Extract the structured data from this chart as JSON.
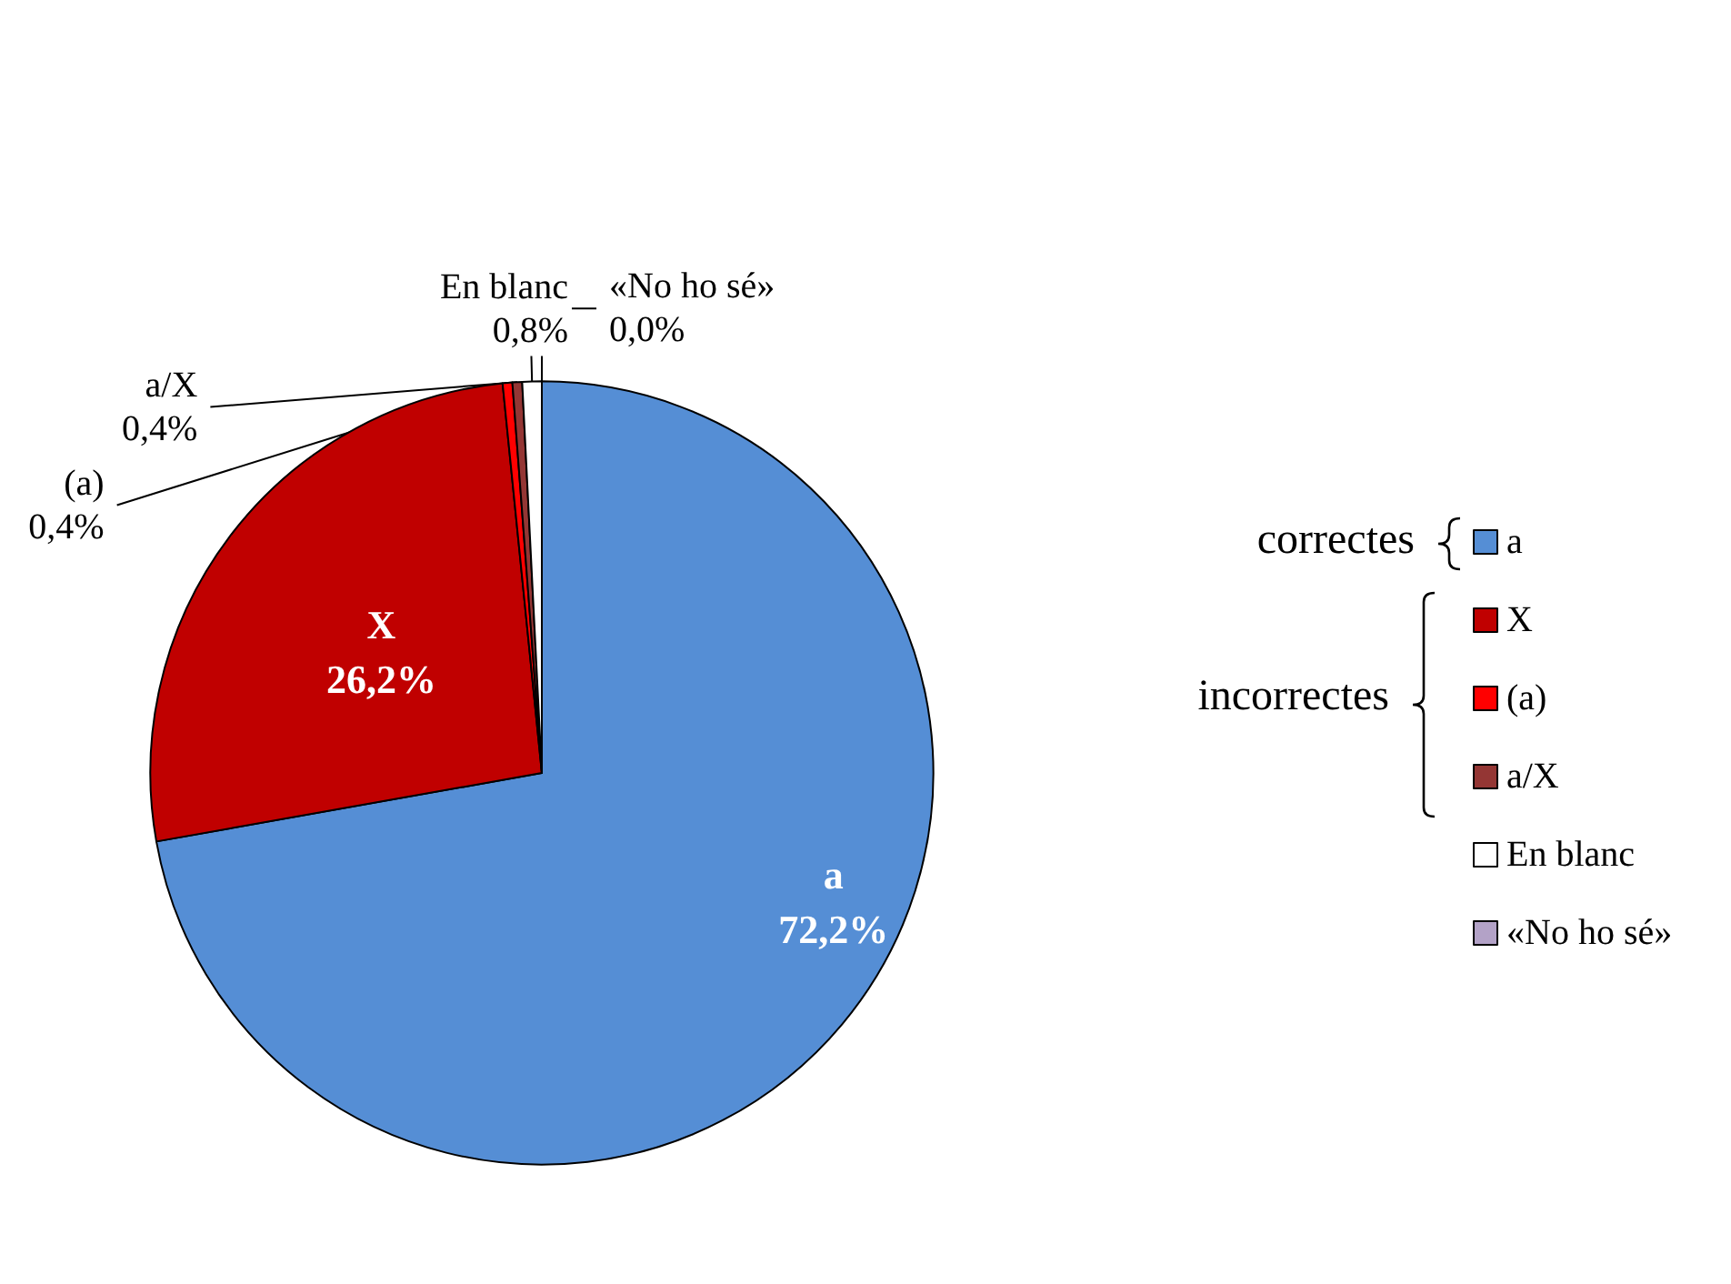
{
  "chart_data": {
    "type": "pie",
    "categories": [
      "a",
      "X",
      "(a)",
      "a/X",
      "En blanc",
      "«No ho sé»"
    ],
    "values": [
      72.2,
      26.2,
      0.4,
      0.4,
      0.8,
      0.0
    ],
    "value_labels": [
      "72,2%",
      "26,2%",
      "0,4%",
      "0,4%",
      "0,8%",
      "0,0%"
    ],
    "colors": [
      "#558ed5",
      "#c00000",
      "#ff0000",
      "#943634",
      "#ffffff",
      "#b3a2c7"
    ],
    "legend": "right",
    "annotations": [
      "correctes",
      "incorrectes"
    ]
  }
}
